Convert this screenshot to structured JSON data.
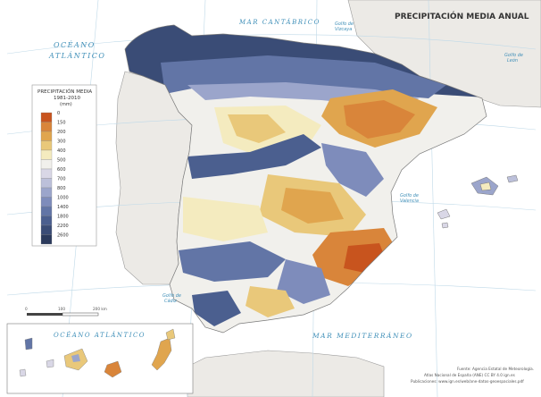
{
  "title": "PRECIPITACIÓN MEDIA ANUAL",
  "seas": {
    "atlantic_line1": "OCÉANO",
    "atlantic_line2": "ATLÁNTICO",
    "cantabrico": "MAR CANTÁBRICO",
    "mediterraneo": "MAR MEDITERRÁNEO",
    "atlantic_inset": "OCÉANO ATLÁNTICO"
  },
  "gulfs": {
    "vizcaya_1": "Golfo de",
    "vizcaya_2": "Vizcaya",
    "leon_1": "Golfo de",
    "leon_2": "León",
    "valencia_1": "Golfo de",
    "valencia_2": "Valencia",
    "cadiz_1": "Golfo de",
    "cadiz_2": "Cádiz"
  },
  "legend": {
    "title_line1": "PRECIPITACIÓN MEDIA",
    "title_line2": "1981-2010",
    "unit": "(mm)",
    "classes": [
      {
        "label": "0",
        "color": "#c8541e"
      },
      {
        "label": "150",
        "color": "#d9853a"
      },
      {
        "label": "200",
        "color": "#e0a54e"
      },
      {
        "label": "300",
        "color": "#e9c87a"
      },
      {
        "label": "400",
        "color": "#f4ebbf"
      },
      {
        "label": "500",
        "color": "#f1f0ec"
      },
      {
        "label": "600",
        "color": "#d9d7e6"
      },
      {
        "label": "700",
        "color": "#bcc0da"
      },
      {
        "label": "800",
        "color": "#9ba5cb"
      },
      {
        "label": "1000",
        "color": "#7e8cbb"
      },
      {
        "label": "1400",
        "color": "#6275a6"
      },
      {
        "label": "1800",
        "color": "#4b5f8f"
      },
      {
        "label": "2200",
        "color": "#3a4c76"
      },
      {
        "label": "2600",
        "color": "#2b3a5c"
      }
    ]
  },
  "scale": {
    "ticks": [
      "0",
      "100",
      "200 km"
    ]
  },
  "credits": {
    "line1": "Fuente: Agencia Estatal de Meteorología.",
    "line2": "Atlas Nacional de España (ANE) CC BY 4.0 ign.es",
    "line3": "Publicaciones: www.ign.es/web/ane-datos-geoespaciales.pdf"
  },
  "colors": {
    "sea": "#ffffff",
    "foreign_land": "#eceae6",
    "graticule": "#bfd9e8",
    "coast": "#7a7a7a"
  }
}
